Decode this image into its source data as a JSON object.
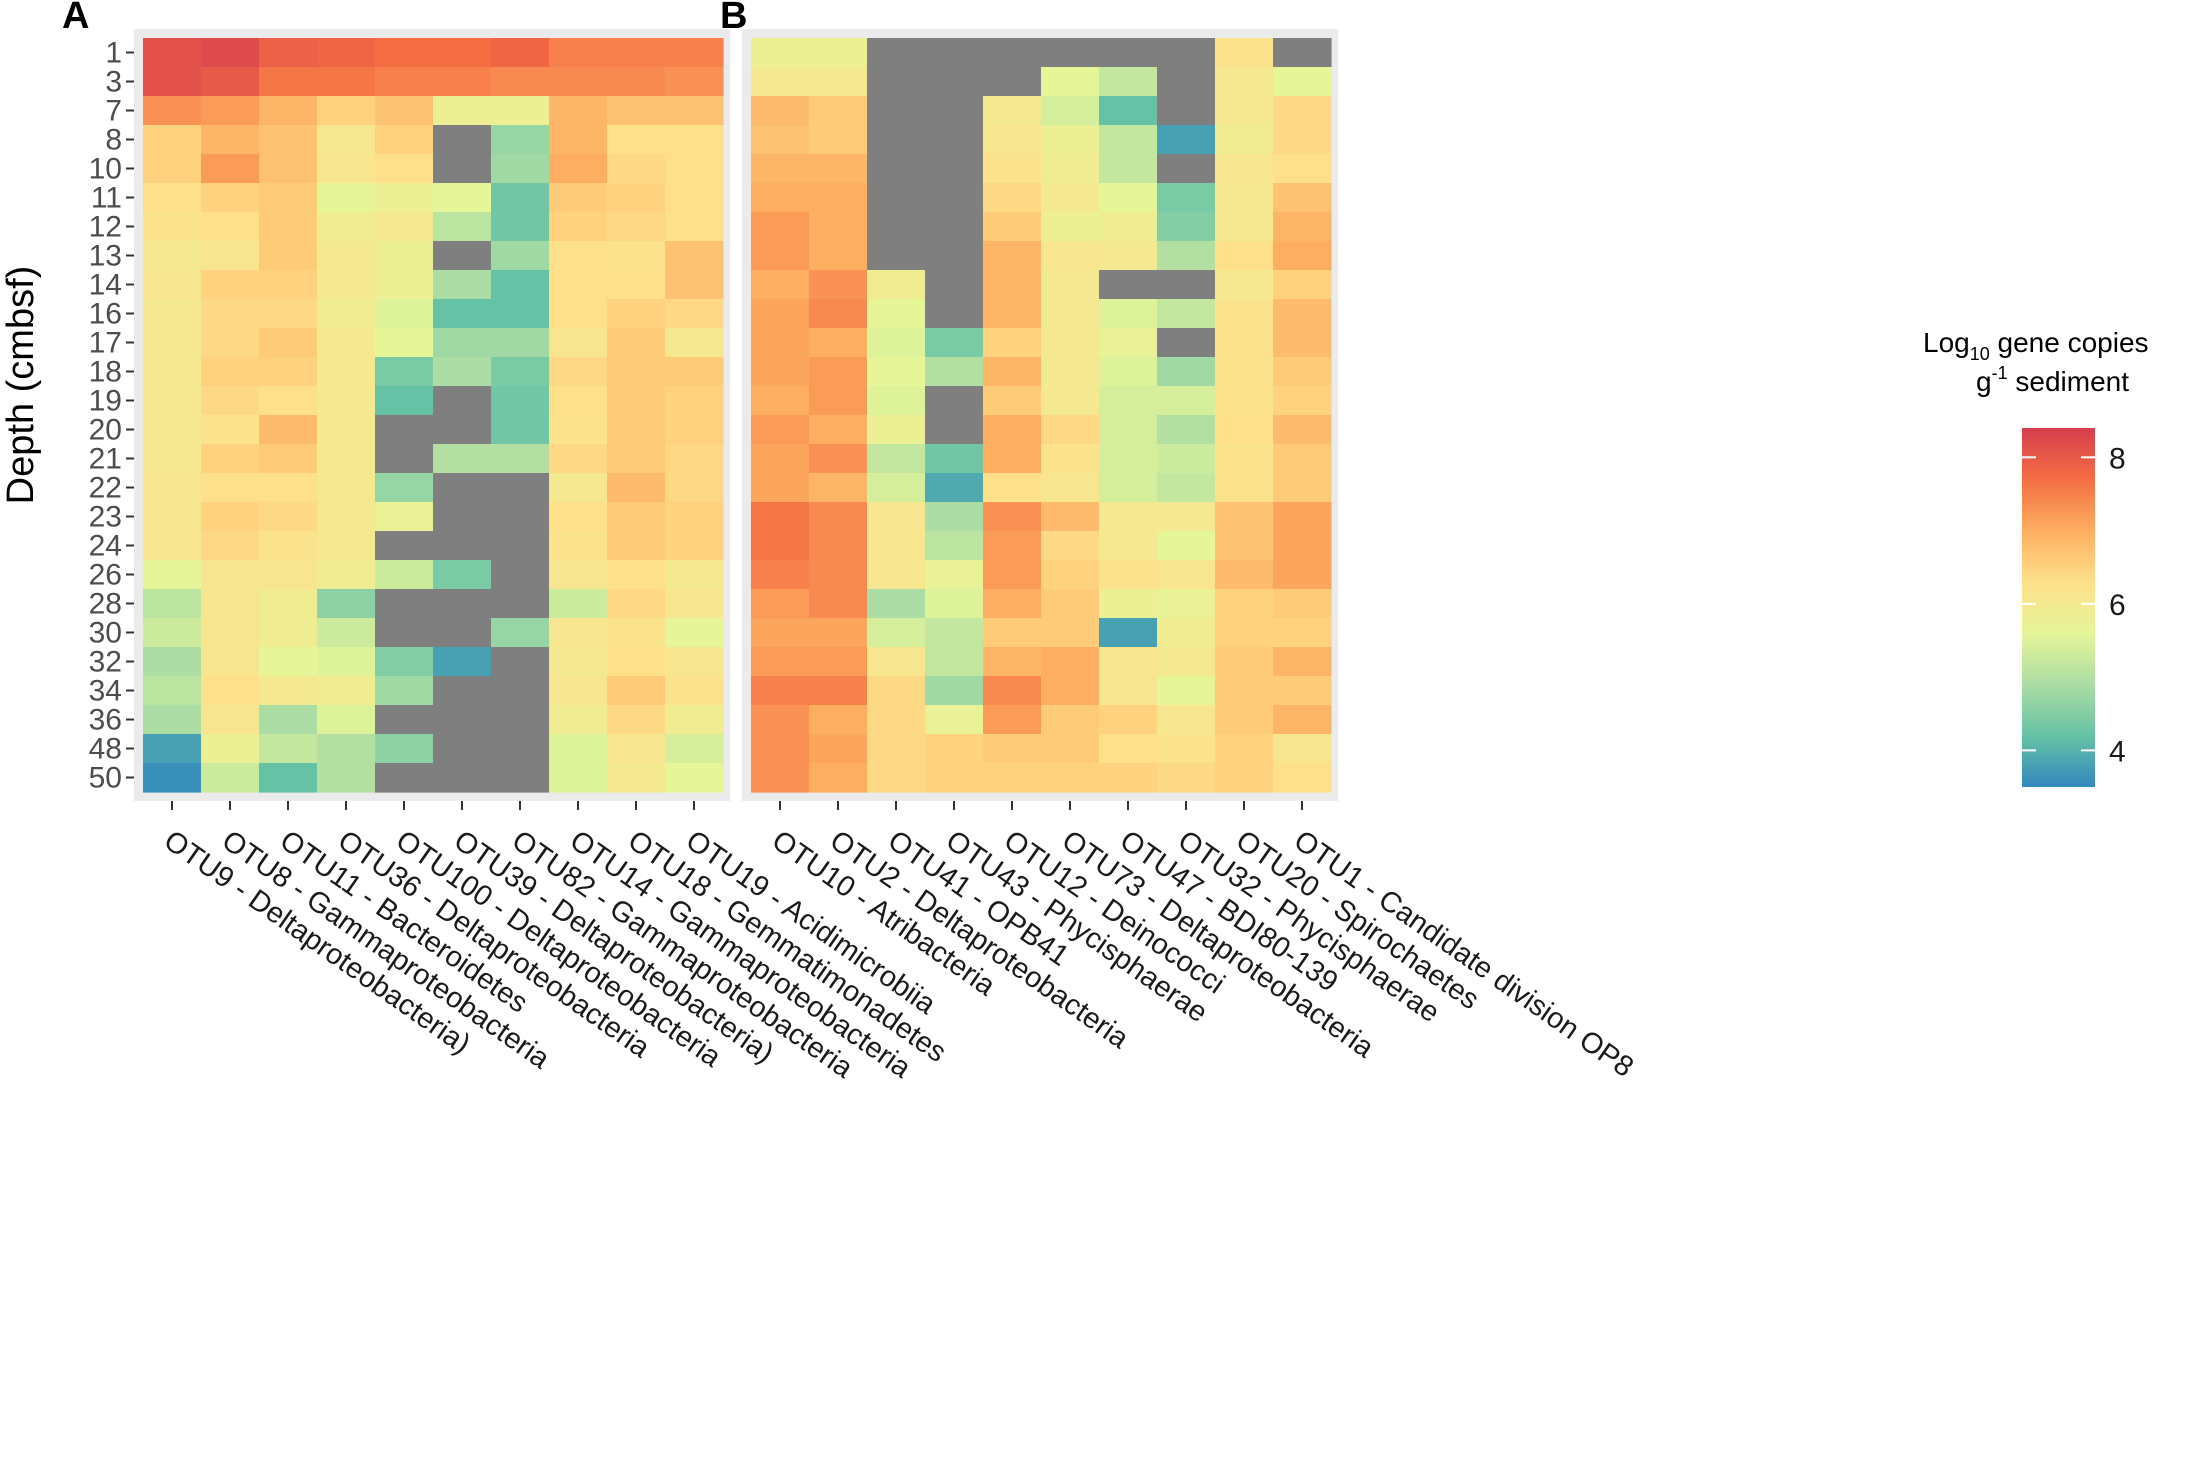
{
  "chart_data": {
    "type": "heatmap",
    "ylabel": "Depth (cmbsf)",
    "depths": [
      "1",
      "3",
      "7",
      "8",
      "10",
      "11",
      "12",
      "13",
      "14",
      "16",
      "17",
      "18",
      "19",
      "20",
      "21",
      "22",
      "23",
      "24",
      "26",
      "28",
      "30",
      "32",
      "34",
      "36",
      "48",
      "50"
    ],
    "na_color": "#7f7f7f",
    "colorscale": [
      "#3288bd",
      "#66c2a5",
      "#abdda4",
      "#e6f598",
      "#fee08b",
      "#fdae61",
      "#f46d43",
      "#d53e4f"
    ],
    "legend": {
      "title_line1": "Log",
      "title_sub": "10",
      "title_rest": " gene copies",
      "title_line2_sup": "-1",
      "title_line2_pre": "g",
      "title_line2_post": " sediment",
      "range": [
        3.5,
        8.4
      ],
      "ticks": [
        "8",
        "6",
        "4"
      ],
      "tick_values": [
        8,
        6,
        4
      ]
    },
    "panels": [
      {
        "label": "A",
        "columns": [
          "OTU9 - Deltaproteobacteria)",
          "OTU8 - Gammaproteobacteria",
          "OTU11 - Bacteroidetes",
          "OTU36 - Deltaproteobacteria",
          "OTU100 - Deltaproteobacteria",
          "OTU39 - Deltaproteobacteria)",
          "OTU82 - Gammaproteobacteria",
          "OTU14 - Gammaproteobacteria",
          "OTU18 - Gemmatimonadetes",
          "OTU19 - Acidimicrobiia"
        ],
        "values": [
          [
            8.1,
            8.2,
            7.9,
            7.8,
            7.7,
            7.7,
            7.8,
            7.5,
            7.5,
            7.5
          ],
          [
            8.1,
            8.0,
            7.6,
            7.6,
            7.5,
            7.5,
            7.4,
            7.4,
            7.4,
            7.3
          ],
          [
            7.3,
            7.2,
            6.9,
            6.5,
            6.7,
            5.8,
            5.8,
            6.9,
            6.7,
            6.7
          ],
          [
            6.5,
            6.9,
            6.7,
            6.0,
            6.5,
            null,
            4.7,
            6.9,
            6.3,
            6.3
          ],
          [
            6.5,
            7.2,
            6.7,
            6.1,
            6.3,
            null,
            4.8,
            7.0,
            6.4,
            6.3
          ],
          [
            6.3,
            6.5,
            6.6,
            5.6,
            5.8,
            5.6,
            4.3,
            6.6,
            6.5,
            6.3
          ],
          [
            6.2,
            6.3,
            6.6,
            5.9,
            6.0,
            5.1,
            4.3,
            6.5,
            6.4,
            6.3
          ],
          [
            6.0,
            6.1,
            6.6,
            6.0,
            5.8,
            null,
            4.8,
            6.3,
            6.2,
            6.7
          ],
          [
            6.1,
            6.5,
            6.5,
            6.0,
            5.8,
            4.9,
            4.2,
            6.3,
            6.3,
            6.7
          ],
          [
            6.0,
            6.4,
            6.4,
            5.9,
            5.5,
            4.2,
            4.2,
            6.3,
            6.5,
            6.4
          ],
          [
            6.0,
            6.4,
            6.6,
            6.0,
            5.6,
            4.8,
            4.8,
            6.1,
            6.6,
            6.0
          ],
          [
            6.0,
            6.5,
            6.5,
            6.0,
            4.4,
            4.9,
            4.4,
            6.4,
            6.6,
            6.6
          ],
          [
            6.0,
            6.4,
            6.3,
            6.0,
            4.2,
            null,
            4.3,
            6.3,
            6.6,
            6.5
          ],
          [
            6.0,
            6.2,
            6.8,
            6.0,
            null,
            null,
            4.3,
            6.2,
            6.6,
            6.5
          ],
          [
            6.0,
            6.5,
            6.6,
            6.0,
            null,
            5.0,
            5.0,
            6.4,
            6.6,
            6.4
          ],
          [
            6.1,
            6.3,
            6.3,
            6.0,
            4.7,
            null,
            null,
            6.0,
            6.8,
            6.4
          ],
          [
            6.1,
            6.5,
            6.4,
            6.0,
            5.7,
            null,
            null,
            6.3,
            6.6,
            6.5
          ],
          [
            6.1,
            6.4,
            6.2,
            6.0,
            null,
            null,
            null,
            6.2,
            6.6,
            6.5
          ],
          [
            5.6,
            6.1,
            6.1,
            5.9,
            5.3,
            4.4,
            null,
            6.1,
            6.3,
            6.0
          ],
          [
            5.1,
            6.1,
            5.9,
            4.6,
            null,
            null,
            null,
            5.3,
            6.4,
            6.1
          ],
          [
            5.3,
            6.1,
            5.9,
            5.3,
            null,
            null,
            4.7,
            6.1,
            6.2,
            5.6
          ],
          [
            4.9,
            6.1,
            5.6,
            5.5,
            4.5,
            3.8,
            null,
            6.0,
            6.3,
            6.1
          ],
          [
            5.1,
            6.3,
            6.0,
            5.9,
            4.8,
            null,
            null,
            6.1,
            6.6,
            6.2
          ],
          [
            4.9,
            6.1,
            4.9,
            5.5,
            null,
            null,
            null,
            5.9,
            6.4,
            5.9
          ],
          [
            3.8,
            5.8,
            5.2,
            5.0,
            4.6,
            null,
            null,
            5.5,
            6.1,
            5.4
          ],
          [
            3.6,
            5.3,
            4.2,
            5.0,
            null,
            null,
            null,
            5.5,
            6.0,
            5.6
          ]
        ]
      },
      {
        "label": "B",
        "columns": [
          "OTU10 - Atribacteria",
          "OTU2 - Deltaproteobacteria",
          "OTU41 - OPB41",
          "OTU43 - Phycisphaerae",
          "OTU12 - Deinococci",
          "OTU73 - Deltaproteobacteria",
          "OTU47 - BDI80-139",
          "OTU32 - Phycisphaerae",
          "OTU20 - Spirochaetes",
          "OTU1 - Candidate division OP8"
        ],
        "values": [
          [
            5.8,
            5.8,
            null,
            null,
            null,
            null,
            null,
            null,
            6.2,
            null
          ],
          [
            6.0,
            6.0,
            null,
            null,
            null,
            5.6,
            5.2,
            null,
            6.0,
            5.6
          ],
          [
            6.8,
            6.6,
            null,
            null,
            6.0,
            5.4,
            4.2,
            null,
            6.0,
            6.4
          ],
          [
            6.7,
            6.6,
            null,
            null,
            6.1,
            5.8,
            5.2,
            3.8,
            5.9,
            6.4
          ],
          [
            6.9,
            6.9,
            null,
            null,
            6.2,
            5.9,
            5.2,
            null,
            6.1,
            6.3
          ],
          [
            7.0,
            7.0,
            null,
            null,
            6.4,
            6.0,
            5.6,
            4.4,
            6.0,
            6.7
          ],
          [
            7.2,
            7.0,
            null,
            null,
            6.6,
            5.8,
            5.9,
            4.5,
            6.0,
            6.9
          ],
          [
            7.2,
            7.0,
            null,
            null,
            6.9,
            6.1,
            6.0,
            5.0,
            6.3,
            7.0
          ],
          [
            7.0,
            7.3,
            5.9,
            null,
            6.9,
            6.0,
            null,
            null,
            6.0,
            6.5
          ],
          [
            7.1,
            7.4,
            5.6,
            null,
            6.9,
            6.0,
            5.5,
            5.2,
            6.2,
            6.8
          ],
          [
            7.1,
            7.0,
            5.5,
            4.4,
            6.5,
            6.0,
            5.7,
            null,
            6.2,
            6.8
          ],
          [
            7.1,
            7.2,
            5.6,
            5.0,
            6.9,
            6.0,
            5.5,
            4.8,
            6.2,
            6.6
          ],
          [
            7.0,
            7.2,
            5.5,
            null,
            6.6,
            6.0,
            5.4,
            5.4,
            6.2,
            6.5
          ],
          [
            7.2,
            7.0,
            5.8,
            null,
            7.0,
            6.4,
            5.4,
            5.0,
            6.3,
            6.8
          ],
          [
            7.1,
            7.3,
            5.2,
            4.3,
            7.0,
            6.2,
            5.4,
            5.3,
            6.2,
            6.6
          ],
          [
            7.1,
            6.9,
            5.4,
            3.9,
            6.3,
            6.1,
            5.4,
            5.2,
            6.2,
            6.6
          ],
          [
            7.6,
            7.4,
            6.1,
            4.9,
            7.3,
            6.8,
            6.0,
            6.0,
            6.7,
            7.1
          ],
          [
            7.6,
            7.4,
            6.1,
            5.1,
            7.2,
            6.4,
            6.0,
            5.6,
            6.7,
            7.1
          ],
          [
            7.5,
            7.4,
            6.1,
            5.7,
            7.2,
            6.5,
            6.2,
            6.1,
            6.8,
            7.1
          ],
          [
            7.2,
            7.4,
            4.9,
            5.5,
            7.0,
            6.6,
            5.8,
            5.7,
            6.5,
            6.6
          ],
          [
            7.1,
            7.1,
            5.4,
            5.2,
            6.6,
            6.6,
            3.8,
            5.9,
            6.5,
            6.5
          ],
          [
            7.2,
            7.2,
            6.1,
            5.2,
            6.9,
            7.0,
            6.1,
            6.0,
            6.6,
            6.9
          ],
          [
            7.5,
            7.5,
            6.4,
            4.8,
            7.4,
            7.0,
            6.1,
            5.6,
            6.6,
            6.6
          ],
          [
            7.3,
            7.0,
            6.4,
            5.7,
            7.2,
            6.6,
            6.5,
            6.1,
            6.6,
            6.9
          ],
          [
            7.3,
            7.1,
            6.4,
            6.5,
            6.6,
            6.6,
            6.3,
            6.2,
            6.5,
            6.1
          ],
          [
            7.3,
            7.0,
            6.4,
            6.5,
            6.5,
            6.5,
            6.5,
            6.4,
            6.5,
            6.3
          ]
        ]
      }
    ]
  }
}
